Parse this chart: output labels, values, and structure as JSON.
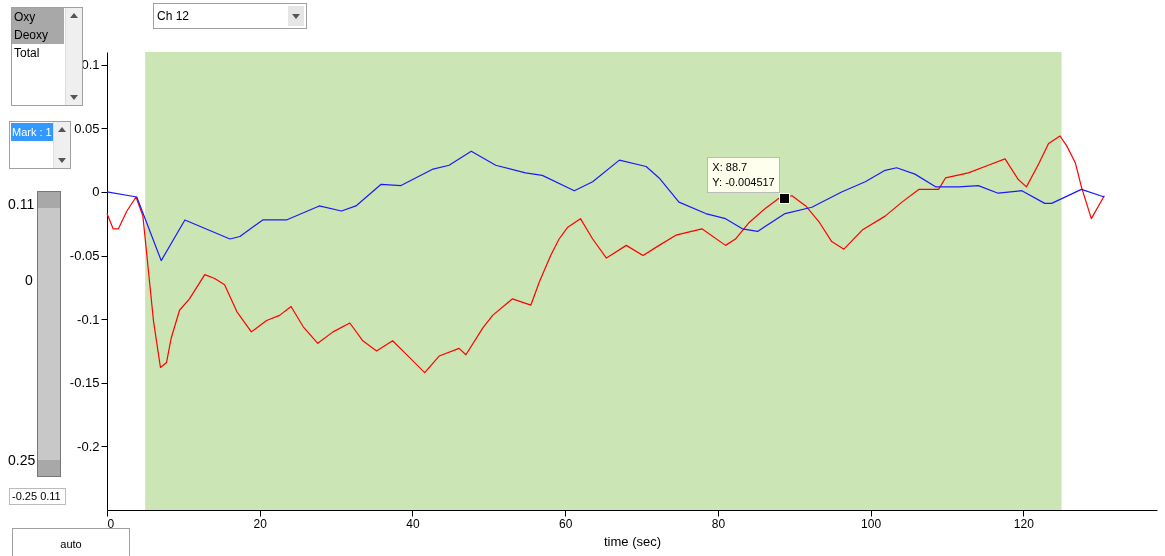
{
  "chart_data": {
    "type": "line",
    "xlabel": "time (sec)",
    "xlim": [
      0,
      137.5
    ],
    "xticks": [
      0,
      20,
      40,
      60,
      80,
      100,
      120
    ],
    "ylim": [
      -0.25,
      0.11
    ],
    "yticks": [
      -0.2,
      -0.15,
      -0.1,
      -0.05,
      0,
      0.05,
      0.1
    ],
    "bands": [
      {
        "axis": "x",
        "from": 5,
        "to": 125,
        "color": "#cce5b4"
      }
    ],
    "series": [
      {
        "color": "#ff0000",
        "x": [
          0,
          0.8,
          1.5,
          2.6,
          3.8,
          4.7,
          6.1,
          7.0,
          7.8,
          8.4,
          9.5,
          10.8,
          12.8,
          14.1,
          15.4,
          17.0,
          18.9,
          20.9,
          22.6,
          24.1,
          25.7,
          27.6,
          29.6,
          31.8,
          33.5,
          35.3,
          37.4,
          39.6,
          41.6,
          43.5,
          46.1,
          47.0,
          49.2,
          50.5,
          53.1,
          55.5,
          56.6,
          58.1,
          59.2,
          60.3,
          62.0,
          63.6,
          65.4,
          68.0,
          70.2,
          72.3,
          74.5,
          77.9,
          81.0,
          82.3,
          84.1,
          86.2,
          88.0,
          89.7,
          91.5,
          93.3,
          94.9,
          96.5,
          98.9,
          101.9,
          104.1,
          106.3,
          108.9,
          109.8,
          112.8,
          115.4,
          117.6,
          119.3,
          120.4,
          122.0,
          123.3,
          124.8,
          125.7,
          126.8,
          127.6,
          128.9,
          130.6
        ],
        "values": [
          -0.017,
          -0.029,
          -0.029,
          -0.015,
          -0.004,
          -0.019,
          -0.102,
          -0.138,
          -0.134,
          -0.115,
          -0.093,
          -0.084,
          -0.065,
          -0.068,
          -0.073,
          -0.094,
          -0.11,
          -0.101,
          -0.097,
          -0.09,
          -0.106,
          -0.119,
          -0.11,
          -0.103,
          -0.117,
          -0.125,
          -0.117,
          -0.13,
          -0.142,
          -0.129,
          -0.123,
          -0.128,
          -0.107,
          -0.097,
          -0.084,
          -0.089,
          -0.071,
          -0.05,
          -0.037,
          -0.028,
          -0.021,
          -0.037,
          -0.052,
          -0.042,
          -0.05,
          -0.042,
          -0.034,
          -0.029,
          -0.042,
          -0.037,
          -0.024,
          -0.013,
          -0.005,
          -0.003,
          -0.011,
          -0.024,
          -0.039,
          -0.045,
          -0.03,
          -0.019,
          -0.008,
          0.002,
          0.002,
          0.011,
          0.015,
          0.021,
          0.026,
          0.01,
          0.004,
          0.022,
          0.038,
          0.044,
          0.036,
          0.023,
          0.004,
          -0.021,
          -0.003
        ]
      },
      {
        "color": "#1a1aff",
        "x": [
          0,
          3.9,
          7.1,
          10.2,
          16.1,
          17.4,
          20.4,
          23.5,
          27.8,
          30.7,
          32.6,
          35.9,
          38.5,
          42.7,
          44.8,
          47.7,
          50.9,
          54.8,
          57.0,
          61.2,
          63.6,
          67.1,
          70.6,
          72.3,
          74.9,
          78.4,
          81.0,
          83.2,
          85.2,
          88.8,
          92.3,
          96.2,
          99.3,
          101.9,
          103.4,
          105.8,
          108.5,
          111.5,
          114.1,
          116.7,
          119.8,
          122.8,
          123.7,
          127.6,
          130.6
        ],
        "values": [
          0,
          -0.004,
          -0.054,
          -0.022,
          -0.037,
          -0.035,
          -0.022,
          -0.022,
          -0.011,
          -0.015,
          -0.011,
          0.006,
          0.005,
          0.018,
          0.021,
          0.032,
          0.021,
          0.015,
          0.013,
          0.001,
          0.008,
          0.025,
          0.02,
          0.011,
          -0.008,
          -0.017,
          -0.021,
          -0.029,
          -0.031,
          -0.017,
          -0.012,
          0,
          0.008,
          0.017,
          0.019,
          0.014,
          0.004,
          0.004,
          0.005,
          -0.001,
          0.001,
          -0.009,
          -0.009,
          0.002,
          -0.004
        ]
      }
    ],
    "annotations": [
      {
        "text": "X: 88.7\nY: -0.004517",
        "x": 88.7,
        "y": -0.004517
      },
      "Oxy",
      "Deoxy",
      "Total",
      "Mark : 1",
      "Ch 12",
      "0.11",
      "0",
      "0.25",
      "-0.25 0.11",
      "auto"
    ]
  }
}
